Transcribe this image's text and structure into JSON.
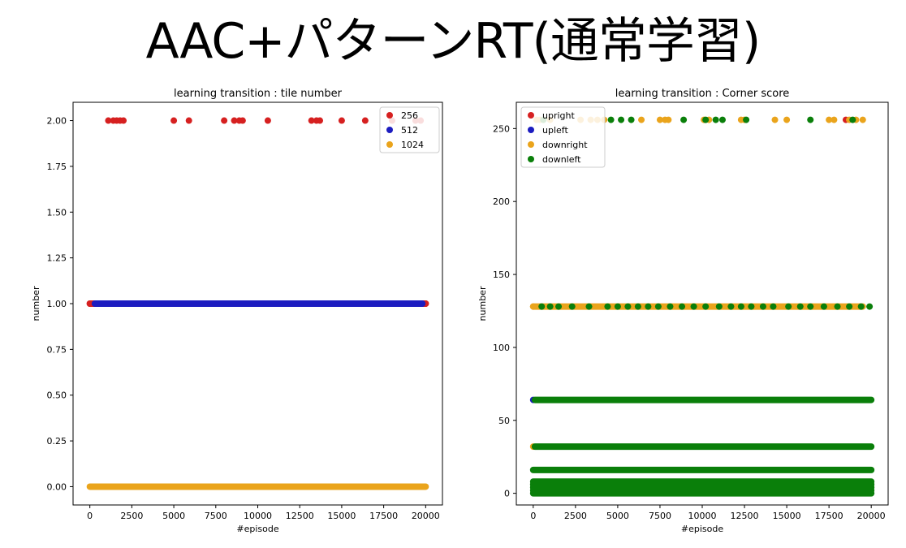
{
  "slide": {
    "title": "AAC+パターンRT(通常学習)"
  },
  "colors": {
    "red": "#d62020",
    "blue": "#1c1cc0",
    "orange": "#eaa41c",
    "green": "#0a7f0a"
  },
  "chart_data": [
    {
      "type": "scatter",
      "title": "learning transition : tile number",
      "xlabel": "#episode",
      "ylabel": "number",
      "xlim": [
        -1000,
        21000
      ],
      "ylim": [
        -0.1,
        2.1
      ],
      "xticks": [
        0,
        2500,
        5000,
        7500,
        10000,
        12500,
        15000,
        17500,
        20000
      ],
      "yticks": [
        0.0,
        0.25,
        0.5,
        0.75,
        1.0,
        1.25,
        1.5,
        1.75,
        2.0
      ],
      "ytick_labels": [
        "0.00",
        "0.25",
        "0.50",
        "0.75",
        "1.00",
        "1.25",
        "1.50",
        "1.75",
        "2.00"
      ],
      "legend": {
        "placement": "upper-right"
      },
      "series": [
        {
          "name": "256",
          "color": "red",
          "points": [
            [
              0,
              1
            ],
            [
              1100,
              2
            ],
            [
              1400,
              2
            ],
            [
              1600,
              2
            ],
            [
              1800,
              2
            ],
            [
              2000,
              2
            ],
            [
              5000,
              2
            ],
            [
              5900,
              2
            ],
            [
              8000,
              2
            ],
            [
              8600,
              2
            ],
            [
              8900,
              2
            ],
            [
              9100,
              2
            ],
            [
              10600,
              2
            ],
            [
              13200,
              2
            ],
            [
              13500,
              2
            ],
            [
              13700,
              2
            ],
            [
              15000,
              2
            ],
            [
              16400,
              2
            ],
            [
              18000,
              2
            ],
            [
              19400,
              2
            ],
            [
              19700,
              2
            ],
            [
              20000,
              1
            ]
          ],
          "bands": [
            {
              "y": 1,
              "x_from": 0,
              "x_to": 20000
            }
          ]
        },
        {
          "name": "512",
          "color": "blue",
          "points": [],
          "bands": [
            {
              "y": 1,
              "x_from": 300,
              "x_to": 19800
            }
          ]
        },
        {
          "name": "1024",
          "color": "orange",
          "points": [],
          "bands": [
            {
              "y": 0,
              "x_from": 0,
              "x_to": 20000
            }
          ]
        }
      ]
    },
    {
      "type": "scatter",
      "title": "learning transition : Corner score",
      "xlabel": "#episode",
      "ylabel": "number",
      "xlim": [
        -1000,
        21000
      ],
      "ylim": [
        -8,
        268
      ],
      "xticks": [
        0,
        2500,
        5000,
        7500,
        10000,
        12500,
        15000,
        17500,
        20000
      ],
      "yticks": [
        0,
        50,
        100,
        150,
        200,
        250
      ],
      "ytick_labels": [
        "0",
        "50",
        "100",
        "150",
        "200",
        "250"
      ],
      "legend": {
        "placement": "upper-left"
      },
      "series": [
        {
          "name": "upright",
          "color": "red",
          "points": [
            [
              18500,
              256
            ]
          ],
          "bands": []
        },
        {
          "name": "upleft",
          "color": "blue",
          "points": [
            [
              0,
              64
            ]
          ],
          "bands": []
        },
        {
          "name": "downright",
          "color": "orange",
          "points": [
            [
              200,
              256
            ],
            [
              400,
              256
            ],
            [
              1000,
              256
            ],
            [
              2800,
              256
            ],
            [
              3400,
              256
            ],
            [
              3800,
              256
            ],
            [
              4200,
              256
            ],
            [
              6400,
              256
            ],
            [
              7500,
              256
            ],
            [
              7800,
              256
            ],
            [
              8000,
              256
            ],
            [
              10100,
              256
            ],
            [
              10400,
              256
            ],
            [
              12300,
              256
            ],
            [
              12500,
              256
            ],
            [
              14300,
              256
            ],
            [
              15000,
              256
            ],
            [
              17500,
              256
            ],
            [
              17800,
              256
            ],
            [
              18700,
              256
            ],
            [
              19100,
              256
            ],
            [
              19500,
              256
            ],
            [
              0,
              128
            ],
            [
              0,
              32
            ]
          ],
          "bands": [
            {
              "y": 128,
              "x_from": 0,
              "x_to": 19500
            }
          ]
        },
        {
          "name": "downleft",
          "color": "green",
          "points": [
            [
              600,
              256
            ],
            [
              4600,
              256
            ],
            [
              5200,
              256
            ],
            [
              5800,
              256
            ],
            [
              8900,
              256
            ],
            [
              10200,
              256
            ],
            [
              10800,
              256
            ],
            [
              11200,
              256
            ],
            [
              12600,
              256
            ],
            [
              16400,
              256
            ],
            [
              18900,
              256
            ],
            [
              500,
              128
            ],
            [
              1000,
              128
            ],
            [
              1500,
              128
            ],
            [
              2300,
              128
            ],
            [
              3300,
              128
            ],
            [
              4400,
              128
            ],
            [
              5000,
              128
            ],
            [
              5600,
              128
            ],
            [
              6200,
              128
            ],
            [
              6800,
              128
            ],
            [
              7400,
              128
            ],
            [
              8100,
              128
            ],
            [
              8800,
              128
            ],
            [
              9500,
              128
            ],
            [
              10200,
              128
            ],
            [
              11000,
              128
            ],
            [
              11700,
              128
            ],
            [
              12300,
              128
            ],
            [
              12900,
              128
            ],
            [
              13600,
              128
            ],
            [
              14200,
              128
            ],
            [
              15100,
              128
            ],
            [
              15800,
              128
            ],
            [
              16400,
              128
            ],
            [
              17200,
              128
            ],
            [
              18000,
              128
            ],
            [
              18700,
              128
            ],
            [
              19400,
              128
            ],
            [
              19900,
              128
            ]
          ],
          "bands": [
            {
              "y": 64,
              "x_from": 100,
              "x_to": 20000
            },
            {
              "y": 32,
              "x_from": 100,
              "x_to": 20000
            },
            {
              "y": 16,
              "x_from": 0,
              "x_to": 20000
            },
            {
              "y": 8,
              "x_from": 0,
              "x_to": 20000
            },
            {
              "y": 6,
              "x_from": 0,
              "x_to": 20000
            },
            {
              "y": 4,
              "x_from": 0,
              "x_to": 20000
            },
            {
              "y": 2,
              "x_from": 0,
              "x_to": 20000
            },
            {
              "y": 0,
              "x_from": 0,
              "x_to": 20000
            }
          ]
        }
      ]
    }
  ]
}
